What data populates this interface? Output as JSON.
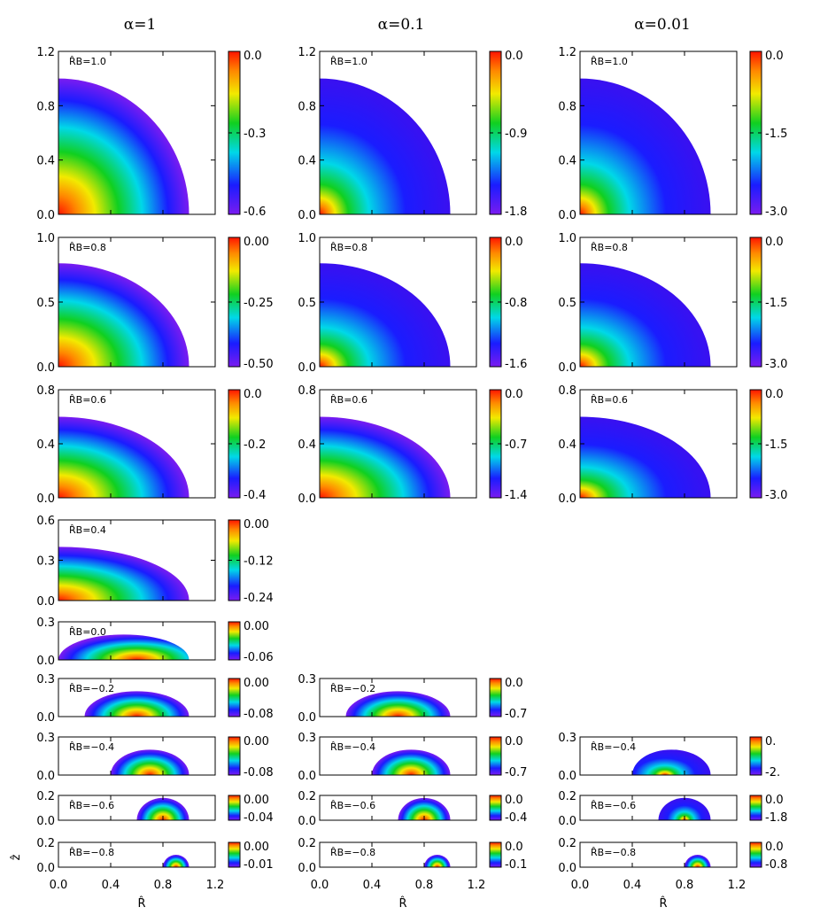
{
  "figure": {
    "column_titles": [
      "α=1",
      "α=0.1",
      "α=0.01"
    ],
    "x_tick_labels": [
      "0.0",
      "0.4",
      "0.8",
      "1.2"
    ],
    "xlabel": "R̂",
    "ylabel": "ẑ"
  },
  "chart_data": [
    {
      "type": "heatmap",
      "col": 0,
      "row": 0,
      "label": "R̂B=1.0",
      "rb": 1.0,
      "shape": "quarter_disk",
      "x_extent": [
        0,
        1.0
      ],
      "z_max": 1.0,
      "ylim": [
        0,
        1.2
      ],
      "yticks": [
        "0.0",
        "0.4",
        "0.8",
        "1.2"
      ],
      "colorbar": {
        "range": [
          -0.6,
          0.0
        ],
        "ticks": [
          "0.0",
          "-0.3",
          "-0.6"
        ]
      },
      "peak_value": 0.0,
      "min_value": -0.6,
      "peak_at": [
        0,
        0
      ]
    },
    {
      "type": "heatmap",
      "col": 1,
      "row": 0,
      "label": "R̂B=1.0",
      "rb": 1.0,
      "shape": "quarter_disk",
      "x_extent": [
        0,
        1.0
      ],
      "z_max": 1.0,
      "ylim": [
        0,
        1.2
      ],
      "yticks": [
        "0.0",
        "0.4",
        "0.8",
        "1.2"
      ],
      "colorbar": {
        "range": [
          -1.8,
          0.0
        ],
        "ticks": [
          "0.0",
          "-0.9",
          "-1.8"
        ]
      },
      "peak_value": 0.0,
      "min_value": -1.8,
      "peak_at": [
        0,
        0
      ]
    },
    {
      "type": "heatmap",
      "col": 2,
      "row": 0,
      "label": "R̂B=1.0",
      "rb": 1.0,
      "shape": "quarter_disk",
      "x_extent": [
        0,
        1.0
      ],
      "z_max": 1.0,
      "ylim": [
        0,
        1.2
      ],
      "yticks": [
        "0.0",
        "0.4",
        "0.8",
        "1.2"
      ],
      "colorbar": {
        "range": [
          -3.0,
          0.0
        ],
        "ticks": [
          "0.0",
          "-1.5",
          "-3.0"
        ]
      },
      "peak_value": 0.0,
      "min_value": -3.0,
      "peak_at": [
        0,
        0
      ]
    },
    {
      "type": "heatmap",
      "col": 0,
      "row": 1,
      "label": "R̂B=0.8",
      "rb": 0.8,
      "shape": "quarter_ellipse",
      "x_extent": [
        0,
        1.0
      ],
      "z_max": 0.8,
      "ylim": [
        0,
        1.0
      ],
      "yticks": [
        "0.0",
        "0.5",
        "1.0"
      ],
      "colorbar": {
        "range": [
          -0.5,
          0.0
        ],
        "ticks": [
          "0.00",
          "-0.25",
          "-0.50"
        ]
      },
      "peak_value": 0.0,
      "min_value": -0.5,
      "peak_at": [
        0,
        0
      ]
    },
    {
      "type": "heatmap",
      "col": 1,
      "row": 1,
      "label": "R̂B=0.8",
      "rb": 0.8,
      "shape": "quarter_ellipse",
      "x_extent": [
        0,
        1.0
      ],
      "z_max": 0.8,
      "ylim": [
        0,
        1.0
      ],
      "yticks": [
        "0.0",
        "0.5",
        "1.0"
      ],
      "colorbar": {
        "range": [
          -1.6,
          0.0
        ],
        "ticks": [
          "0.0",
          "-0.8",
          "-1.6"
        ]
      },
      "peak_value": 0.0,
      "min_value": -1.6,
      "peak_at": [
        0,
        0
      ]
    },
    {
      "type": "heatmap",
      "col": 2,
      "row": 1,
      "label": "R̂B=0.8",
      "rb": 0.8,
      "shape": "quarter_ellipse",
      "x_extent": [
        0,
        1.0
      ],
      "z_max": 0.8,
      "ylim": [
        0,
        1.0
      ],
      "yticks": [
        "0.0",
        "0.5",
        "1.0"
      ],
      "colorbar": {
        "range": [
          -3.0,
          0.0
        ],
        "ticks": [
          "0.0",
          "-1.5",
          "-3.0"
        ]
      },
      "peak_value": 0.0,
      "min_value": -3.0,
      "peak_at": [
        0,
        0
      ]
    },
    {
      "type": "heatmap",
      "col": 0,
      "row": 2,
      "label": "R̂B=0.6",
      "rb": 0.6,
      "shape": "quarter_ellipse",
      "x_extent": [
        0,
        1.0
      ],
      "z_max": 0.6,
      "ylim": [
        0,
        0.8
      ],
      "yticks": [
        "0.0",
        "0.4",
        "0.8"
      ],
      "colorbar": {
        "range": [
          -0.4,
          0.0
        ],
        "ticks": [
          "0.0",
          "-0.2",
          "-0.4"
        ]
      },
      "peak_value": 0.0,
      "min_value": -0.4,
      "peak_at": [
        0,
        0
      ]
    },
    {
      "type": "heatmap",
      "col": 1,
      "row": 2,
      "label": "R̂B=0.6",
      "rb": 0.6,
      "shape": "quarter_ellipse",
      "x_extent": [
        0,
        1.0
      ],
      "z_max": 0.6,
      "ylim": [
        0,
        0.8
      ],
      "yticks": [
        "0.0",
        "0.4",
        "0.8"
      ],
      "colorbar": {
        "range": [
          -1.4,
          0.0
        ],
        "ticks": [
          "0.0",
          "-0.7",
          "-1.4"
        ]
      },
      "peak_value": 0.0,
      "min_value": -1.4,
      "peak_at": [
        0,
        0
      ]
    },
    {
      "type": "heatmap",
      "col": 2,
      "row": 2,
      "label": "R̂B=0.6",
      "rb": 0.6,
      "shape": "quarter_ellipse",
      "x_extent": [
        0,
        1.0
      ],
      "z_max": 0.6,
      "ylim": [
        0,
        0.8
      ],
      "yticks": [
        "0.0",
        "0.4",
        "0.8"
      ],
      "colorbar": {
        "range": [
          -3.0,
          0.0
        ],
        "ticks": [
          "0.0",
          "-1.5",
          "-3.0"
        ]
      },
      "peak_value": 0.0,
      "min_value": -3.0,
      "peak_at": [
        0,
        0
      ]
    },
    {
      "type": "heatmap",
      "col": 0,
      "row": 3,
      "label": "R̂B=0.4",
      "rb": 0.4,
      "shape": "quarter_ellipse",
      "x_extent": [
        0,
        1.0
      ],
      "z_max": 0.4,
      "ylim": [
        0,
        0.6
      ],
      "yticks": [
        "0.0",
        "0.3",
        "0.6"
      ],
      "colorbar": {
        "range": [
          -0.24,
          0.0
        ],
        "ticks": [
          "0.00",
          "-0.12",
          "-0.24"
        ]
      },
      "peak_value": 0.0,
      "min_value": -0.24,
      "peak_at": [
        0,
        0
      ]
    },
    {
      "type": "heatmap",
      "col": 0,
      "row": 4,
      "label": "R̂B=0.0",
      "rb": 0.0,
      "shape": "arch",
      "x_extent": [
        0,
        1.0
      ],
      "z_max": 0.2,
      "ylim": [
        0,
        0.3
      ],
      "yticks": [
        "0.0",
        "0.3"
      ],
      "colorbar": {
        "range": [
          -0.06,
          0.0
        ],
        "ticks": [
          "0.00",
          "-0.06"
        ]
      },
      "peak_value": 0.0,
      "min_value": -0.06,
      "peak_at": [
        0.6,
        0
      ]
    },
    {
      "type": "heatmap",
      "col": 0,
      "row": 5,
      "label": "R̂B=−0.2",
      "rb": -0.2,
      "shape": "half_ellipse",
      "x_extent": [
        0.2,
        1.0
      ],
      "z_max": 0.2,
      "ylim": [
        0,
        0.3
      ],
      "yticks": [
        "0.0",
        "0.3"
      ],
      "colorbar": {
        "range": [
          -0.08,
          0.0
        ],
        "ticks": [
          "0.00",
          "-0.08"
        ]
      },
      "peak_value": 0.0,
      "min_value": -0.08,
      "peak_at": [
        0.6,
        0
      ]
    },
    {
      "type": "heatmap",
      "col": 1,
      "row": 5,
      "label": "R̂B=−0.2",
      "rb": -0.2,
      "shape": "half_ellipse",
      "x_extent": [
        0.2,
        1.0
      ],
      "z_max": 0.2,
      "ylim": [
        0,
        0.3
      ],
      "yticks": [
        "0.0",
        "0.3"
      ],
      "colorbar": {
        "range": [
          -0.7,
          0.0
        ],
        "ticks": [
          "0.0",
          "-0.7"
        ]
      },
      "peak_value": 0.0,
      "min_value": -0.7,
      "peak_at": [
        0.6,
        0
      ]
    },
    {
      "type": "heatmap",
      "col": 0,
      "row": 6,
      "label": "R̂B=−0.4",
      "rb": -0.4,
      "shape": "half_ellipse",
      "x_extent": [
        0.4,
        1.0
      ],
      "z_max": 0.2,
      "ylim": [
        0,
        0.3
      ],
      "yticks": [
        "0.0",
        "0.3"
      ],
      "colorbar": {
        "range": [
          -0.08,
          0.0
        ],
        "ticks": [
          "0.00",
          "-0.08"
        ]
      },
      "peak_value": 0.0,
      "min_value": -0.08,
      "peak_at": [
        0.7,
        0
      ]
    },
    {
      "type": "heatmap",
      "col": 1,
      "row": 6,
      "label": "R̂B=−0.4",
      "rb": -0.4,
      "shape": "half_ellipse",
      "x_extent": [
        0.4,
        1.0
      ],
      "z_max": 0.2,
      "ylim": [
        0,
        0.3
      ],
      "yticks": [
        "0.0",
        "0.3"
      ],
      "colorbar": {
        "range": [
          -0.7,
          0.0
        ],
        "ticks": [
          "0.0",
          "-0.7"
        ]
      },
      "peak_value": 0.0,
      "min_value": -0.7,
      "peak_at": [
        0.7,
        0
      ]
    },
    {
      "type": "heatmap",
      "col": 2,
      "row": 6,
      "label": "R̂B=−0.4",
      "rb": -0.4,
      "shape": "half_ellipse",
      "x_extent": [
        0.4,
        1.0
      ],
      "z_max": 0.2,
      "ylim": [
        0,
        0.3
      ],
      "yticks": [
        "0.0",
        "0.3"
      ],
      "colorbar": {
        "range": [
          -2.0,
          0.0
        ],
        "ticks": [
          "0.",
          "-2."
        ]
      },
      "peak_value": 0.0,
      "min_value": -2.0,
      "peak_at": [
        0.65,
        0
      ]
    },
    {
      "type": "heatmap",
      "col": 0,
      "row": 7,
      "label": "R̂B=−0.6",
      "rb": -0.6,
      "shape": "half_ellipse",
      "x_extent": [
        0.6,
        1.0
      ],
      "z_max": 0.18,
      "ylim": [
        0,
        0.2
      ],
      "yticks": [
        "0.0",
        "0.2"
      ],
      "colorbar": {
        "range": [
          -0.04,
          0.0
        ],
        "ticks": [
          "0.00",
          "-0.04"
        ]
      },
      "peak_value": 0.0,
      "min_value": -0.04,
      "peak_at": [
        0.8,
        0
      ]
    },
    {
      "type": "heatmap",
      "col": 1,
      "row": 7,
      "label": "R̂B=−0.6",
      "rb": -0.6,
      "shape": "half_ellipse",
      "x_extent": [
        0.6,
        1.0
      ],
      "z_max": 0.18,
      "ylim": [
        0,
        0.2
      ],
      "yticks": [
        "0.0",
        "0.2"
      ],
      "colorbar": {
        "range": [
          -0.4,
          0.0
        ],
        "ticks": [
          "0.0",
          "-0.4"
        ]
      },
      "peak_value": 0.0,
      "min_value": -0.4,
      "peak_at": [
        0.8,
        0
      ]
    },
    {
      "type": "heatmap",
      "col": 2,
      "row": 7,
      "label": "R̂B=−0.6",
      "rb": -0.6,
      "shape": "half_ellipse",
      "x_extent": [
        0.6,
        1.0
      ],
      "z_max": 0.18,
      "ylim": [
        0,
        0.2
      ],
      "yticks": [
        "0.0",
        "0.2"
      ],
      "colorbar": {
        "range": [
          -1.8,
          0.0
        ],
        "ticks": [
          "0.0",
          "-1.8"
        ]
      },
      "peak_value": 0.0,
      "min_value": -1.8,
      "peak_at": [
        0.8,
        0
      ]
    },
    {
      "type": "heatmap",
      "col": 0,
      "row": 8,
      "label": "R̂B=−0.8",
      "rb": -0.8,
      "shape": "half_ellipse",
      "x_extent": [
        0.8,
        1.0
      ],
      "z_max": 0.1,
      "ylim": [
        0,
        0.2
      ],
      "yticks": [
        "0.0",
        "0.2"
      ],
      "colorbar": {
        "range": [
          -0.01,
          0.0
        ],
        "ticks": [
          "0.00",
          "-0.01"
        ]
      },
      "peak_value": 0.0,
      "min_value": -0.01,
      "peak_at": [
        0.9,
        0
      ]
    },
    {
      "type": "heatmap",
      "col": 1,
      "row": 8,
      "label": "R̂B=−0.8",
      "rb": -0.8,
      "shape": "half_ellipse",
      "x_extent": [
        0.8,
        1.0
      ],
      "z_max": 0.1,
      "ylim": [
        0,
        0.2
      ],
      "yticks": [
        "0.0",
        "0.2"
      ],
      "colorbar": {
        "range": [
          -0.1,
          0.0
        ],
        "ticks": [
          "0.0",
          "-0.1"
        ]
      },
      "peak_value": 0.0,
      "min_value": -0.1,
      "peak_at": [
        0.9,
        0
      ]
    },
    {
      "type": "heatmap",
      "col": 2,
      "row": 8,
      "label": "R̂B=−0.8",
      "rb": -0.8,
      "shape": "half_ellipse",
      "x_extent": [
        0.8,
        1.0
      ],
      "z_max": 0.1,
      "ylim": [
        0,
        0.2
      ],
      "yticks": [
        "0.0",
        "0.2"
      ],
      "colorbar": {
        "range": [
          -0.8,
          0.0
        ],
        "ticks": [
          "0.0",
          "-0.8"
        ]
      },
      "peak_value": 0.0,
      "min_value": -0.8,
      "peak_at": [
        0.9,
        0
      ]
    }
  ]
}
